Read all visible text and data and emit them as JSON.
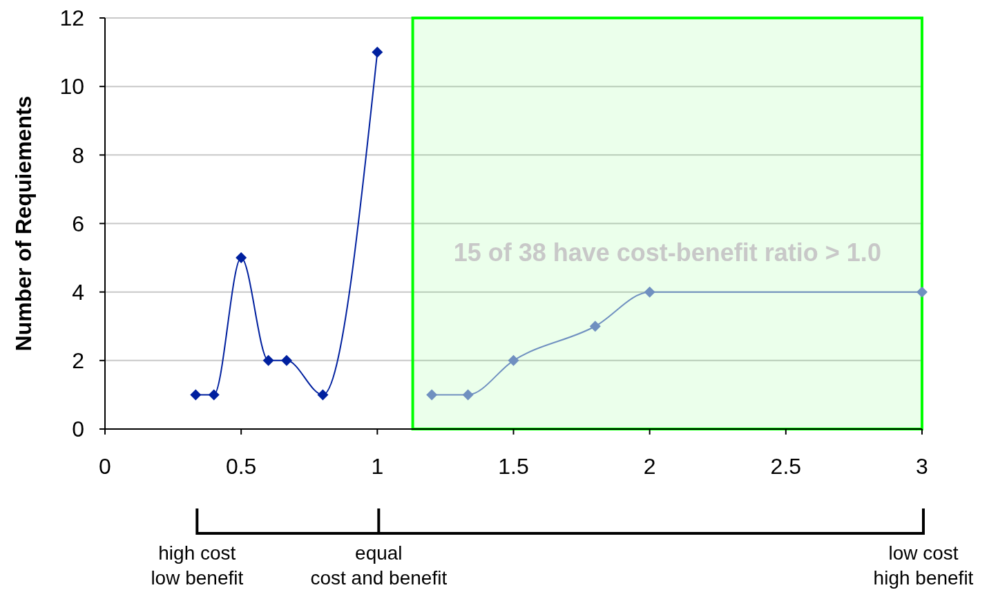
{
  "chart_data": {
    "type": "line",
    "ylabel": "Number of Requiements",
    "xlim": [
      0,
      3
    ],
    "xticks": [
      0,
      0.5,
      1,
      1.5,
      2,
      2.5,
      3
    ],
    "ylim": [
      0,
      12
    ],
    "yticks": [
      0,
      2,
      4,
      6,
      8,
      10,
      12
    ],
    "grid": "y",
    "marker": "diamond",
    "line_style": "solid",
    "series": [
      {
        "color": "#00209f",
        "x": [
          0.333,
          0.4,
          0.5,
          0.6,
          0.667,
          0.8,
          1.0
        ],
        "values": [
          1,
          1,
          5,
          2,
          2,
          1,
          11
        ]
      },
      {
        "color": "#7090c0",
        "x": [
          1.2,
          1.333,
          1.5,
          1.8,
          2.0,
          3.0
        ],
        "values": [
          1,
          1,
          2,
          3,
          4,
          4
        ]
      }
    ],
    "bands": [
      {
        "axis": "x",
        "from": 1.13,
        "to": 3,
        "label": "15 of 38 have cost-benefit ratio > 1.0",
        "color": "#00ff00"
      }
    ],
    "annotations": [
      {
        "text": "high cost\nlow benefit",
        "x": 0.333
      },
      {
        "text": "equal\ncost and benefit",
        "x": 1.0
      },
      {
        "text": "low cost\nhigh benefit",
        "x": 3.0
      }
    ]
  }
}
